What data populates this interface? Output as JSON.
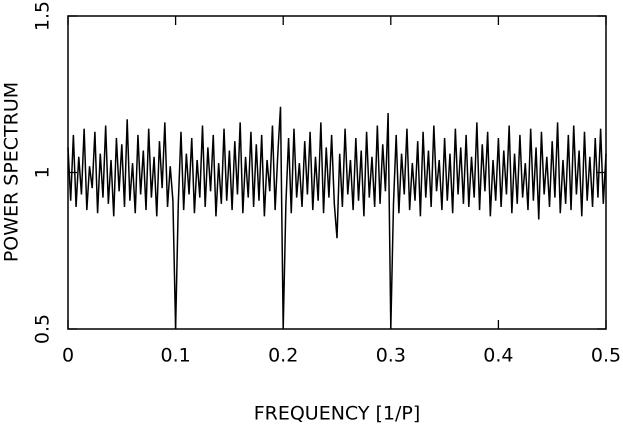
{
  "chart_data": {
    "type": "line",
    "xlabel": "FREQUENCY [1/P]",
    "ylabel": "POWER SPECTRUM",
    "xlim": [
      0,
      0.5
    ],
    "ylim": [
      0.5,
      1.5
    ],
    "xticks": [
      0,
      0.1,
      0.2,
      0.3,
      0.4,
      0.5
    ],
    "yticks": [
      0.5,
      1,
      1.5
    ],
    "color": "#000000",
    "x": [
      0,
      0.0025,
      0.005,
      0.0075,
      0.01,
      0.0125,
      0.015,
      0.0175,
      0.02,
      0.0225,
      0.025,
      0.0275,
      0.03,
      0.0325,
      0.035,
      0.0375,
      0.04,
      0.0425,
      0.045,
      0.0475,
      0.05,
      0.0525,
      0.055,
      0.0575,
      0.06,
      0.0625,
      0.065,
      0.0675,
      0.07,
      0.0725,
      0.075,
      0.0775,
      0.08,
      0.0825,
      0.085,
      0.0875,
      0.09,
      0.0925,
      0.095,
      0.0975,
      0.1,
      0.1025,
      0.105,
      0.1075,
      0.11,
      0.1125,
      0.115,
      0.1175,
      0.12,
      0.1225,
      0.125,
      0.1275,
      0.13,
      0.1325,
      0.135,
      0.1375,
      0.14,
      0.1425,
      0.145,
      0.1475,
      0.15,
      0.1525,
      0.155,
      0.1575,
      0.16,
      0.1625,
      0.165,
      0.1675,
      0.17,
      0.1725,
      0.175,
      0.1775,
      0.18,
      0.1825,
      0.185,
      0.1875,
      0.19,
      0.1925,
      0.195,
      0.1975,
      0.2,
      0.2025,
      0.205,
      0.2075,
      0.21,
      0.2125,
      0.215,
      0.2175,
      0.22,
      0.2225,
      0.225,
      0.2275,
      0.23,
      0.2325,
      0.235,
      0.2375,
      0.24,
      0.2425,
      0.245,
      0.2475,
      0.25,
      0.2525,
      0.255,
      0.2575,
      0.26,
      0.2625,
      0.265,
      0.2675,
      0.27,
      0.2725,
      0.275,
      0.2775,
      0.28,
      0.2825,
      0.285,
      0.2875,
      0.29,
      0.2925,
      0.295,
      0.2975,
      0.3,
      0.3025,
      0.305,
      0.3075,
      0.31,
      0.3125,
      0.315,
      0.3175,
      0.32,
      0.3225,
      0.325,
      0.3275,
      0.33,
      0.3325,
      0.335,
      0.3375,
      0.34,
      0.3425,
      0.345,
      0.3475,
      0.35,
      0.3525,
      0.355,
      0.3575,
      0.36,
      0.3625,
      0.365,
      0.3675,
      0.37,
      0.3725,
      0.375,
      0.3775,
      0.38,
      0.3825,
      0.385,
      0.3875,
      0.39,
      0.3925,
      0.395,
      0.3975,
      0.4,
      0.4025,
      0.405,
      0.4075,
      0.41,
      0.4125,
      0.415,
      0.4175,
      0.42,
      0.4225,
      0.425,
      0.4275,
      0.43,
      0.4325,
      0.435,
      0.4375,
      0.44,
      0.4425,
      0.445,
      0.4475,
      0.45,
      0.4525,
      0.455,
      0.4575,
      0.46,
      0.4625,
      0.465,
      0.4675,
      0.47,
      0.4725,
      0.475,
      0.4775,
      0.48,
      0.4825,
      0.485,
      0.4875,
      0.49,
      0.4925,
      0.495,
      0.4975,
      0.5
    ],
    "values": [
      1.08,
      0.91,
      1.12,
      0.89,
      1.05,
      0.93,
      1.14,
      0.88,
      1.02,
      0.95,
      1.13,
      0.87,
      1.06,
      0.92,
      1.15,
      0.9,
      1.04,
      0.86,
      1.11,
      0.94,
      1.09,
      0.89,
      1.17,
      0.91,
      1.03,
      0.87,
      1.12,
      0.93,
      1.07,
      0.88,
      1.14,
      0.92,
      1.05,
      0.86,
      1.1,
      0.95,
      1.16,
      0.89,
      1.02,
      0.91,
      0.5,
      0.9,
      1.13,
      0.88,
      1.06,
      0.93,
      1.11,
      0.87,
      1.04,
      0.92,
      1.15,
      0.89,
      1.08,
      0.94,
      1.12,
      0.86,
      1.03,
      0.9,
      1.14,
      0.91,
      1.07,
      0.88,
      1.1,
      0.93,
      1.16,
      0.87,
      1.05,
      0.92,
      1.13,
      0.89,
      1.09,
      0.91,
      1.12,
      0.86,
      1.04,
      0.94,
      1.15,
      0.88,
      1.06,
      1.21,
      0.5,
      0.9,
      1.11,
      0.87,
      1.14,
      0.92,
      1.03,
      0.89,
      1.1,
      0.93,
      1.13,
      0.88,
      1.05,
      0.91,
      1.16,
      0.87,
      1.08,
      0.92,
      1.12,
      0.9,
      0.79,
      1.06,
      0.89,
      1.14,
      0.93,
      1.04,
      0.88,
      1.11,
      0.91,
      1.07,
      0.86,
      1.13,
      0.92,
      1.05,
      0.89,
      1.15,
      0.9,
      1.09,
      0.94,
      1.19,
      0.5,
      0.9,
      1.12,
      0.87,
      1.06,
      0.93,
      1.14,
      0.88,
      1.03,
      0.91,
      1.1,
      0.86,
      1.13,
      0.92,
      1.07,
      0.89,
      1.15,
      0.94,
      1.04,
      0.88,
      1.11,
      0.91,
      1.06,
      0.87,
      1.14,
      0.93,
      1.08,
      0.9,
      1.12,
      0.89,
      1.05,
      0.92,
      1.16,
      0.88,
      1.09,
      0.94,
      1.13,
      0.86,
      1.04,
      0.91,
      1.11,
      0.89,
      1.07,
      0.93,
      1.15,
      0.87,
      1.06,
      0.9,
      1.12,
      0.92,
      1.03,
      0.88,
      1.14,
      0.91,
      1.08,
      0.85,
      1.13,
      0.93,
      1.05,
      0.89,
      1.1,
      0.92,
      1.16,
      0.87,
      1.04,
      0.9,
      1.12,
      0.88,
      1.15,
      0.93,
      1.07,
      0.86,
      1.13,
      0.91,
      1.05,
      0.89,
      1.11,
      0.92,
      1.14,
      0.9,
      1.06
    ]
  }
}
